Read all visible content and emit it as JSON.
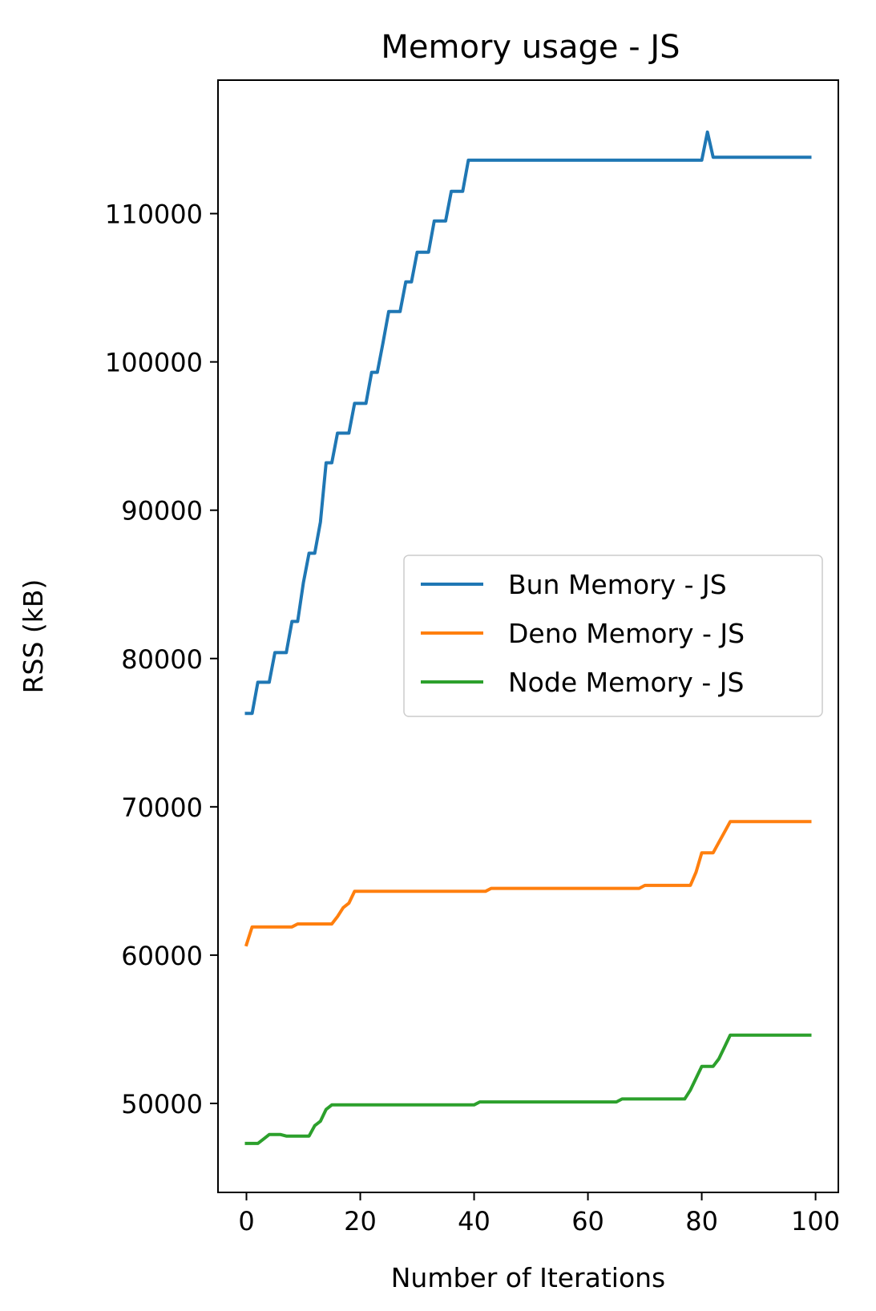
{
  "chart_data": {
    "type": "line",
    "title": "Memory usage - JS",
    "xlabel": "Number of Iterations",
    "ylabel": "RSS (kB)",
    "xlim": [
      -5,
      104
    ],
    "ylim": [
      44000,
      119000
    ],
    "xticks": [
      0,
      20,
      40,
      60,
      80,
      100
    ],
    "yticks": [
      50000,
      60000,
      70000,
      80000,
      90000,
      100000,
      110000
    ],
    "grid": false,
    "legend": "center-right",
    "series": [
      {
        "name": "Bun Memory - JS",
        "color": "#1f77b4",
        "points": [
          [
            0,
            76300
          ],
          [
            1,
            76300
          ],
          [
            2,
            78400
          ],
          [
            4,
            78400
          ],
          [
            5,
            80400
          ],
          [
            7,
            80400
          ],
          [
            8,
            82500
          ],
          [
            9,
            82500
          ],
          [
            10,
            85100
          ],
          [
            11,
            87100
          ],
          [
            12,
            87100
          ],
          [
            13,
            89200
          ],
          [
            14,
            93200
          ],
          [
            15,
            93200
          ],
          [
            16,
            95200
          ],
          [
            18,
            95200
          ],
          [
            19,
            97200
          ],
          [
            21,
            97200
          ],
          [
            22,
            99300
          ],
          [
            23,
            99300
          ],
          [
            24,
            101300
          ],
          [
            25,
            103400
          ],
          [
            27,
            103400
          ],
          [
            28,
            105400
          ],
          [
            29,
            105400
          ],
          [
            30,
            107400
          ],
          [
            32,
            107400
          ],
          [
            33,
            109500
          ],
          [
            35,
            109500
          ],
          [
            36,
            111500
          ],
          [
            38,
            111500
          ],
          [
            39,
            113600
          ],
          [
            80,
            113600
          ],
          [
            81,
            115500
          ],
          [
            82,
            113800
          ],
          [
            99,
            113800
          ]
        ]
      },
      {
        "name": "Deno Memory - JS",
        "color": "#ff7f0e",
        "points": [
          [
            0,
            60700
          ],
          [
            1,
            61900
          ],
          [
            8,
            61900
          ],
          [
            9,
            62100
          ],
          [
            15,
            62100
          ],
          [
            16,
            62600
          ],
          [
            17,
            63200
          ],
          [
            18,
            63500
          ],
          [
            19,
            64300
          ],
          [
            42,
            64300
          ],
          [
            43,
            64500
          ],
          [
            69,
            64500
          ],
          [
            70,
            64700
          ],
          [
            78,
            64700
          ],
          [
            79,
            65600
          ],
          [
            80,
            66900
          ],
          [
            82,
            66900
          ],
          [
            83,
            67600
          ],
          [
            84,
            68300
          ],
          [
            85,
            69000
          ],
          [
            99,
            69000
          ]
        ]
      },
      {
        "name": "Node Memory - JS",
        "color": "#2ca02c",
        "points": [
          [
            0,
            47300
          ],
          [
            2,
            47300
          ],
          [
            3,
            47600
          ],
          [
            4,
            47900
          ],
          [
            6,
            47900
          ],
          [
            7,
            47800
          ],
          [
            11,
            47800
          ],
          [
            12,
            48500
          ],
          [
            13,
            48800
          ],
          [
            14,
            49600
          ],
          [
            15,
            49900
          ],
          [
            40,
            49900
          ],
          [
            41,
            50100
          ],
          [
            65,
            50100
          ],
          [
            66,
            50300
          ],
          [
            77,
            50300
          ],
          [
            78,
            50900
          ],
          [
            79,
            51700
          ],
          [
            80,
            52500
          ],
          [
            82,
            52500
          ],
          [
            83,
            53000
          ],
          [
            84,
            53800
          ],
          [
            85,
            54600
          ],
          [
            99,
            54600
          ]
        ]
      }
    ]
  }
}
